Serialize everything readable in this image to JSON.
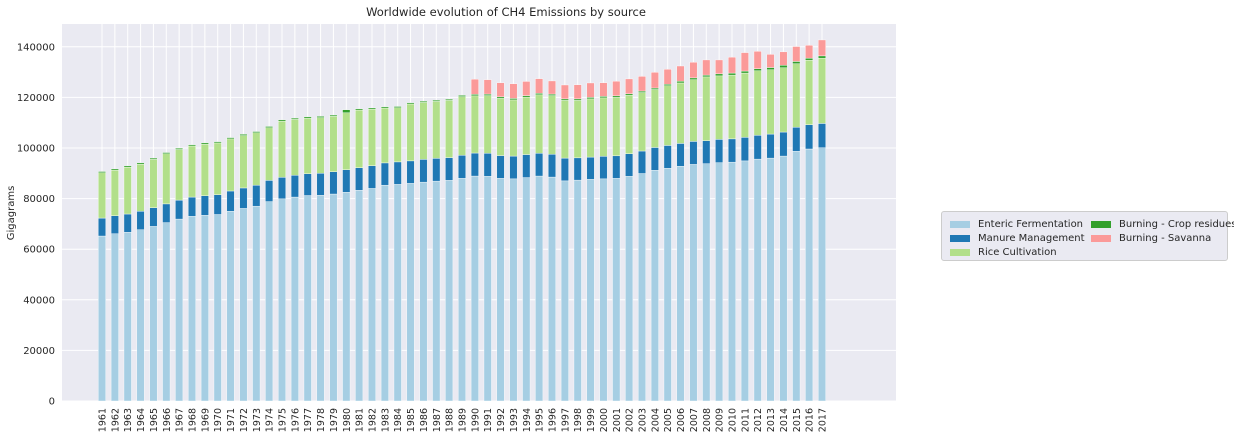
{
  "chart_data": {
    "type": "bar",
    "stacked": true,
    "title": "Worldwide evolution of CH4 Emissions by source",
    "xlabel": "",
    "ylabel": "Gigagrams",
    "ylim": [
      0,
      149000
    ],
    "yticks": [
      0,
      20000,
      40000,
      60000,
      80000,
      100000,
      120000,
      140000
    ],
    "grid": true,
    "legend_position": "right",
    "categories": [
      "1961",
      "1962",
      "1963",
      "1964",
      "1965",
      "1966",
      "1967",
      "1968",
      "1969",
      "1970",
      "1971",
      "1972",
      "1973",
      "1974",
      "1975",
      "1976",
      "1977",
      "1978",
      "1979",
      "1980",
      "1981",
      "1982",
      "1983",
      "1984",
      "1985",
      "1986",
      "1987",
      "1988",
      "1989",
      "1990",
      "1991",
      "1992",
      "1993",
      "1994",
      "1995",
      "1996",
      "1997",
      "1998",
      "1999",
      "2000",
      "2001",
      "2002",
      "2003",
      "2004",
      "2005",
      "2006",
      "2007",
      "2008",
      "2009",
      "2010",
      "2011",
      "2012",
      "2013",
      "2014",
      "2015",
      "2016",
      "2017"
    ],
    "series": [
      {
        "name": "Enteric Fermentation",
        "color": "#a6cee3",
        "values": [
          65200,
          66100,
          66700,
          67700,
          69000,
          70500,
          71900,
          73000,
          73400,
          73700,
          75000,
          76100,
          77000,
          78800,
          79900,
          80600,
          81200,
          81300,
          81800,
          82500,
          83300,
          84000,
          85300,
          85600,
          86000,
          86500,
          86900,
          87200,
          88000,
          88900,
          88800,
          88000,
          87800,
          88300,
          88900,
          88500,
          87000,
          87300,
          87600,
          87800,
          88000,
          88800,
          89900,
          91200,
          92000,
          92800,
          93500,
          93800,
          94200,
          94400,
          94900,
          95600,
          96000,
          96800,
          98700,
          99600,
          100100
        ]
      },
      {
        "name": "Manure Management",
        "color": "#1f78b4",
        "values": [
          7100,
          7100,
          7200,
          7300,
          7400,
          7400,
          7500,
          7600,
          7700,
          7800,
          8000,
          8100,
          8300,
          8400,
          8500,
          8600,
          8600,
          8700,
          8800,
          8900,
          8900,
          9000,
          8800,
          8900,
          8900,
          9000,
          9000,
          9000,
          9100,
          9100,
          9100,
          9000,
          9000,
          9100,
          9000,
          9000,
          9000,
          8800,
          8800,
          8900,
          8900,
          8900,
          8900,
          9000,
          9000,
          9000,
          9100,
          9100,
          9200,
          9200,
          9300,
          9400,
          9500,
          9500,
          9500,
          9600,
          9600
        ]
      },
      {
        "name": "Rice Cultivation",
        "color": "#b2df8a",
        "values": [
          17900,
          18000,
          18500,
          18600,
          19100,
          19800,
          20000,
          20200,
          20400,
          20500,
          20600,
          20700,
          20700,
          20800,
          22200,
          22100,
          22000,
          22000,
          21900,
          22500,
          22800,
          22300,
          21700,
          21400,
          22500,
          22500,
          22500,
          22600,
          23200,
          22600,
          22800,
          22600,
          22200,
          22700,
          23100,
          23200,
          22800,
          22700,
          23000,
          23100,
          23100,
          23100,
          23100,
          22900,
          23600,
          23900,
          24400,
          25200,
          25100,
          25200,
          25400,
          25500,
          25400,
          25400,
          25100,
          25500,
          25800
        ]
      },
      {
        "name": "Burning - Crop residues",
        "color": "#33a02c",
        "values": [
          500,
          500,
          500,
          500,
          500,
          500,
          500,
          500,
          500,
          500,
          500,
          500,
          500,
          500,
          500,
          500,
          500,
          500,
          500,
          1200,
          500,
          500,
          500,
          500,
          500,
          500,
          500,
          500,
          500,
          600,
          600,
          600,
          600,
          600,
          600,
          600,
          600,
          600,
          600,
          600,
          600,
          600,
          600,
          600,
          600,
          700,
          700,
          700,
          800,
          800,
          800,
          800,
          900,
          1000,
          900,
          800,
          900
        ]
      },
      {
        "name": "Burning - Savanna",
        "color": "#fb9a99",
        "values": [
          0,
          0,
          0,
          0,
          0,
          0,
          0,
          0,
          0,
          0,
          0,
          0,
          0,
          0,
          0,
          0,
          0,
          0,
          0,
          0,
          0,
          0,
          0,
          0,
          0,
          0,
          0,
          0,
          0,
          6000,
          5700,
          5600,
          5800,
          5600,
          5800,
          5200,
          5500,
          5600,
          5700,
          5400,
          5800,
          5900,
          5800,
          6200,
          5900,
          6000,
          6200,
          6000,
          5500,
          6300,
          7300,
          6900,
          5200,
          5300,
          5900,
          5100,
          6300
        ]
      }
    ]
  }
}
